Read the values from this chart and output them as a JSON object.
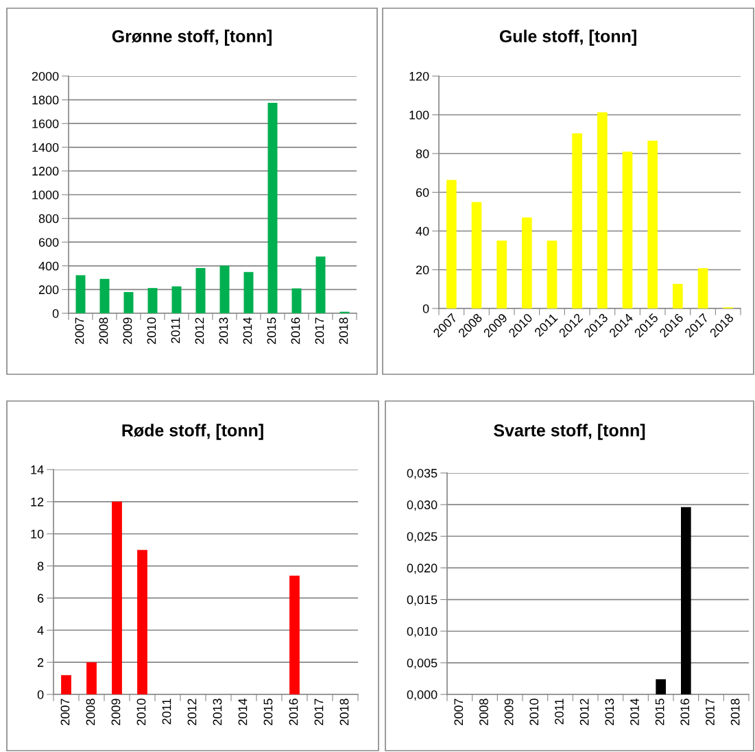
{
  "chart_data": [
    {
      "type": "bar",
      "title": "Grønne stoff, [tonn]",
      "categories": [
        "2007",
        "2008",
        "2009",
        "2010",
        "2011",
        "2012",
        "2013",
        "2014",
        "2015",
        "2016",
        "2017",
        "2018"
      ],
      "color": "#00b050",
      "values": [
        321,
        290,
        179,
        213,
        227,
        381,
        402,
        348,
        1775,
        210,
        479,
        13
      ],
      "ylim": [
        0,
        2000
      ],
      "yticks": [
        0,
        200,
        400,
        600,
        800,
        1000,
        1200,
        1400,
        1600,
        1800,
        2000
      ],
      "grid": "y"
    },
    {
      "type": "bar",
      "title": "Gule stoff, [tonn]",
      "categories": [
        "2007",
        "2008",
        "2009",
        "2010",
        "2011",
        "2012",
        "2013",
        "2014",
        "2015",
        "2016",
        "2017",
        "2018"
      ],
      "color": "#ffff00",
      "values": [
        66.4,
        55,
        35,
        47,
        35,
        90.4,
        101.3,
        81,
        86.6,
        12.7,
        20.8,
        0.6
      ],
      "ylim": [
        0,
        120
      ],
      "yticks": [
        0,
        20,
        40,
        60,
        80,
        100,
        120
      ],
      "grid": "y"
    },
    {
      "type": "bar",
      "title": "Røde stoff, [tonn]",
      "categories": [
        "2007",
        "2008",
        "2009",
        "2010",
        "2011",
        "2012",
        "2013",
        "2014",
        "2015",
        "2016",
        "2017",
        "2018"
      ],
      "color": "#ff0000",
      "values": [
        1.2,
        2,
        12,
        9,
        0,
        0,
        0,
        0,
        0,
        7.4,
        0,
        0
      ],
      "ylim": [
        0,
        14
      ],
      "yticks": [
        0,
        2,
        4,
        6,
        8,
        10,
        12,
        14
      ],
      "grid": "y"
    },
    {
      "type": "bar",
      "title": "Svarte stoff, [tonn]",
      "categories": [
        "2007",
        "2008",
        "2009",
        "2010",
        "2011",
        "2012",
        "2013",
        "2014",
        "2015",
        "2016",
        "2017",
        "2018"
      ],
      "color": "#000000",
      "values": [
        0,
        0,
        0,
        0,
        0,
        0,
        0,
        0,
        0.0024,
        0.0296,
        0,
        0
      ],
      "ylim": [
        0,
        0.035
      ],
      "yticks": [
        {
          "value": 0,
          "label": "0,000"
        },
        {
          "value": 0.005,
          "label": "0,005"
        },
        {
          "value": 0.01,
          "label": "0,010"
        },
        {
          "value": 0.015,
          "label": "0,015"
        },
        {
          "value": 0.02,
          "label": "0,020"
        },
        {
          "value": 0.025,
          "label": "0,025"
        },
        {
          "value": 0.03,
          "label": "0,030"
        },
        {
          "value": 0.035,
          "label": "0,035"
        }
      ],
      "grid": "y"
    }
  ]
}
